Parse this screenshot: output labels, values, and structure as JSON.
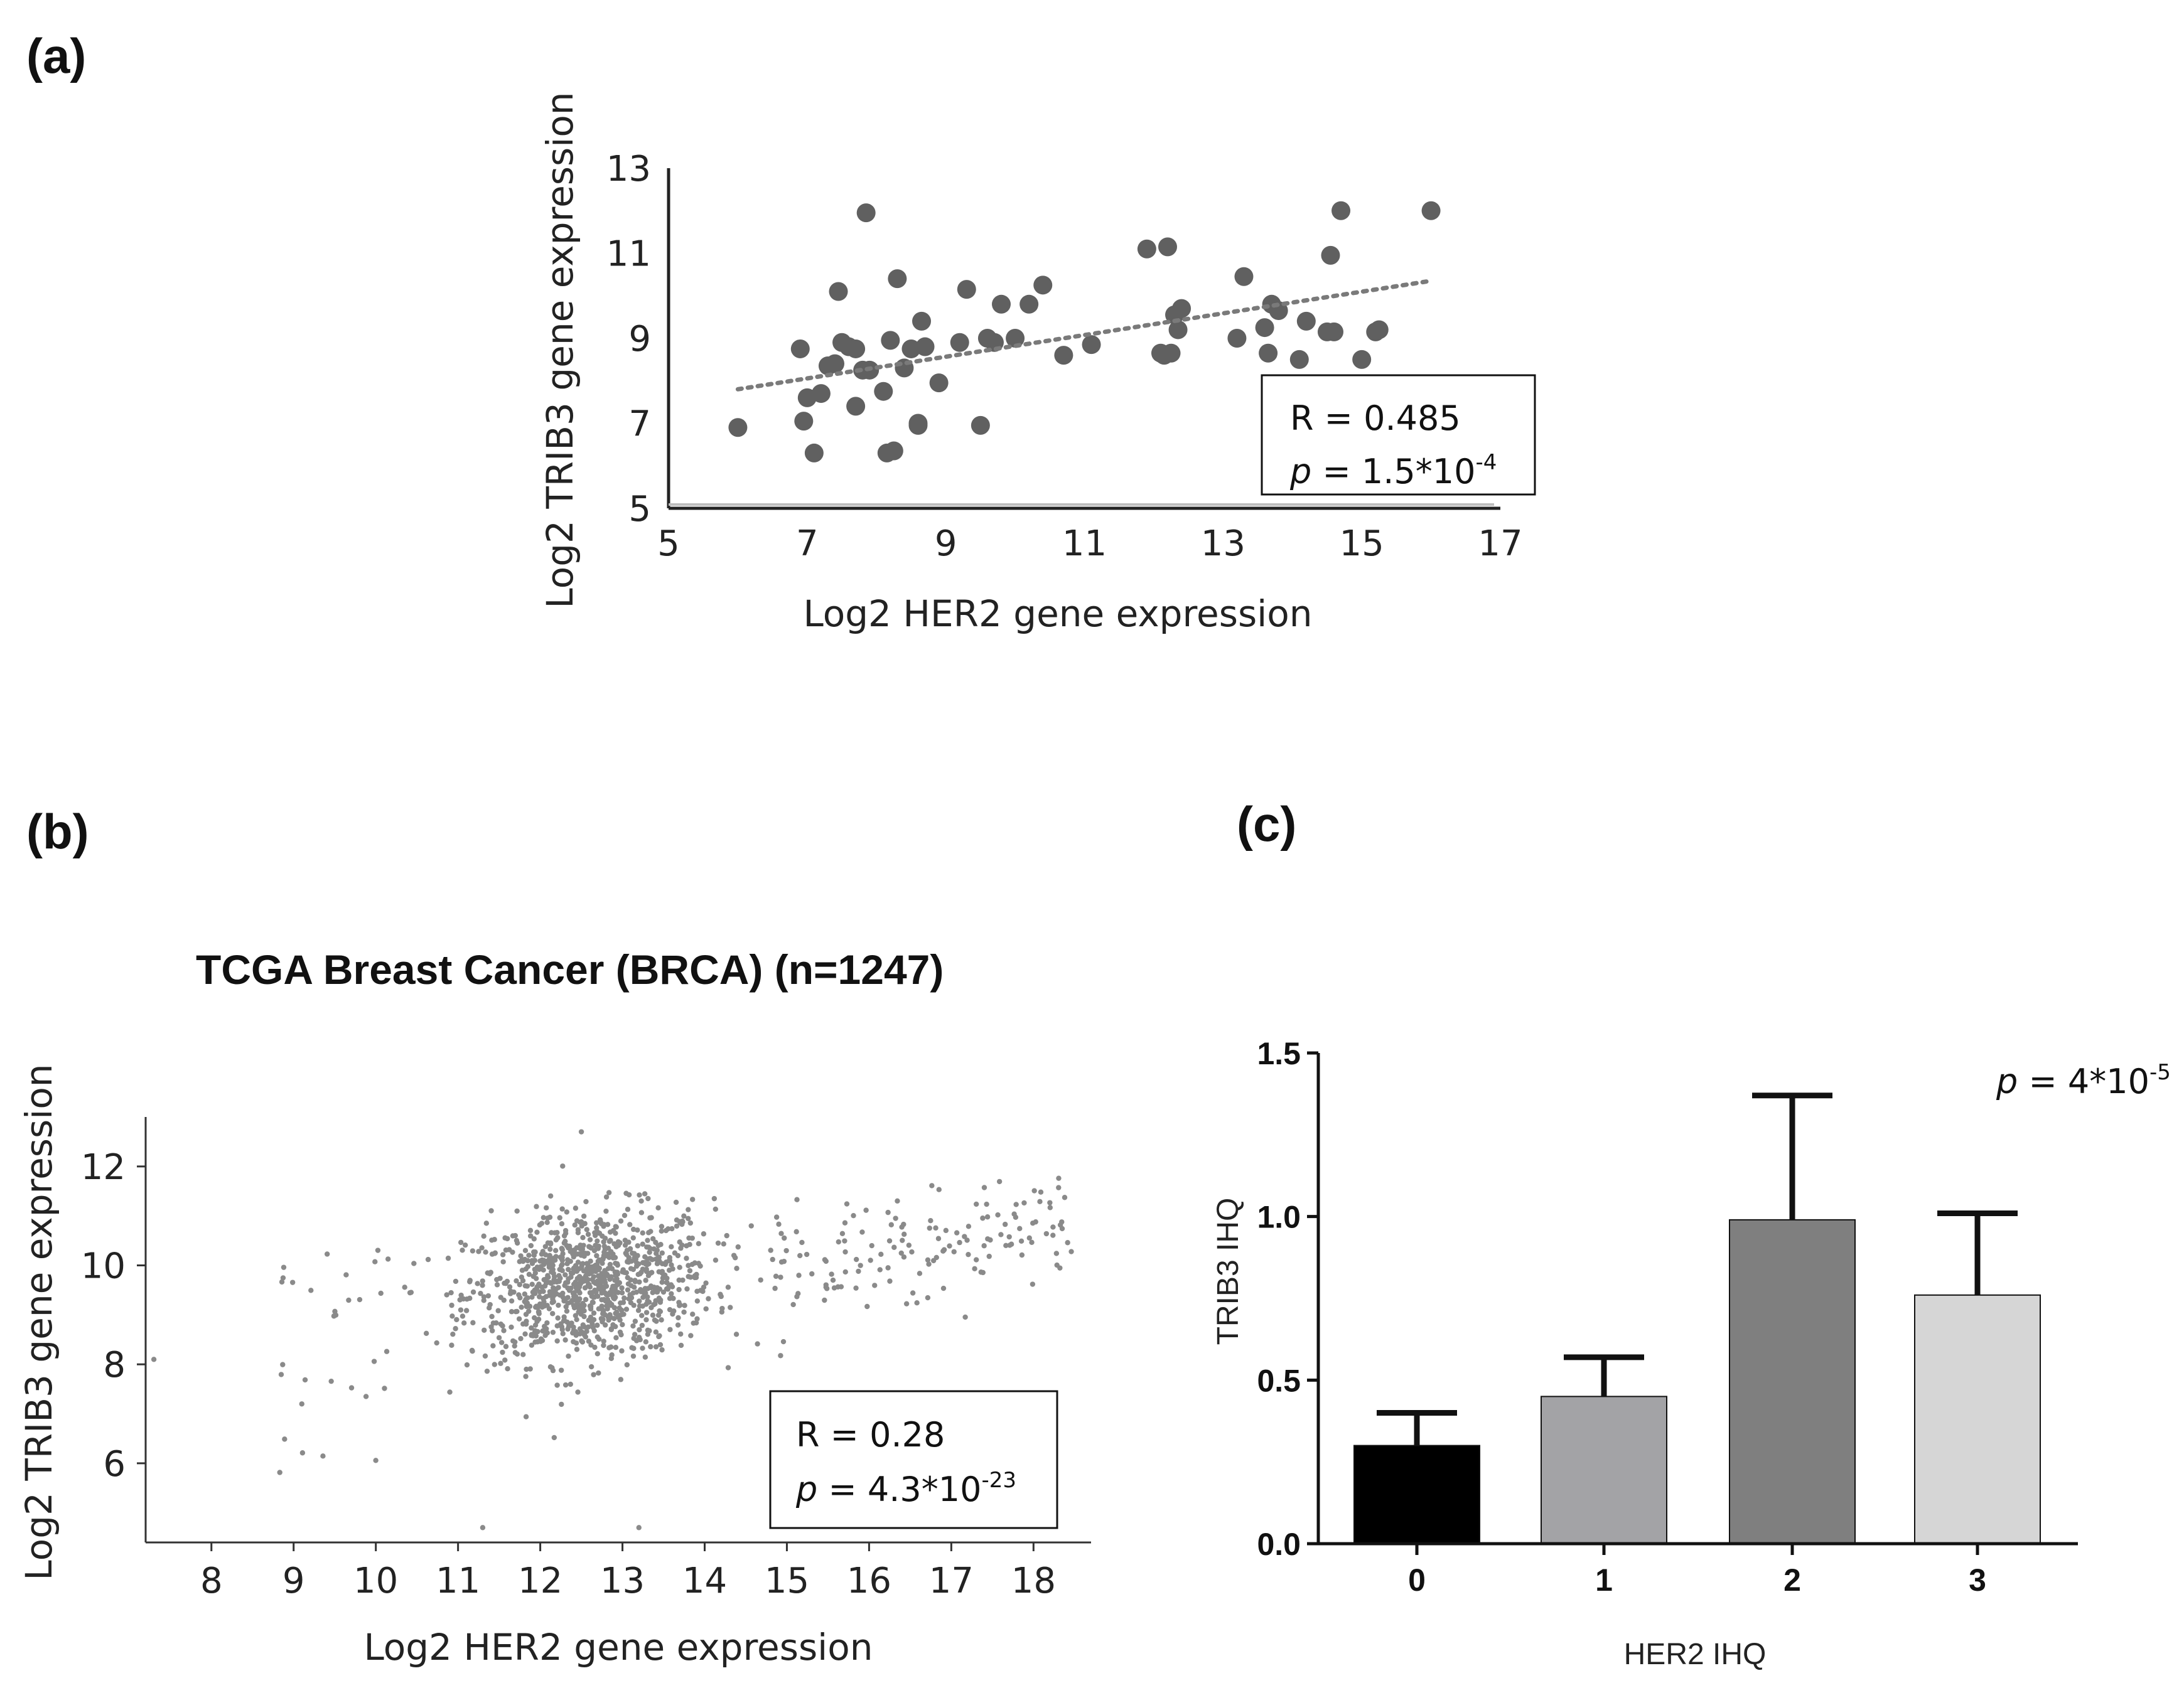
{
  "panels": {
    "a": "(a)",
    "b": "(b)",
    "c": "(c)"
  },
  "colors": {
    "scatter_a": "#606060",
    "scatter_b": "#8a8a8a",
    "trend": "#7a7a7a",
    "bar0": "#000000",
    "bar1": "#a3a3a6",
    "bar2": "#7f7f7f",
    "bar3": "#d6d6d6"
  },
  "chart_data": [
    {
      "id": "a",
      "type": "scatter",
      "title": "",
      "xlabel": "Log2 HER2 gene expression",
      "ylabel": "Log2 TRIB3 gene expression",
      "xlim": [
        5,
        17
      ],
      "ylim": [
        5,
        13
      ],
      "xticks": [
        "5",
        "7",
        "9",
        "11",
        "13",
        "15",
        "17"
      ],
      "yticks": [
        "5",
        "7",
        "9",
        "11",
        "13"
      ],
      "x": [
        6.0,
        6.9,
        6.95,
        7.0,
        7.1,
        7.2,
        7.3,
        7.4,
        7.45,
        7.5,
        7.6,
        7.7,
        7.7,
        7.8,
        7.85,
        7.9,
        8.1,
        8.15,
        8.2,
        8.25,
        8.3,
        8.4,
        8.5,
        8.6,
        8.6,
        8.65,
        8.7,
        8.9,
        9.2,
        9.3,
        9.5,
        9.6,
        9.7,
        9.8,
        10.0,
        10.2,
        10.4,
        10.7,
        11.1,
        11.9,
        12.1,
        12.15,
        12.2,
        12.25,
        12.3,
        12.35,
        12.4,
        13.2,
        13.3,
        13.6,
        13.65,
        13.7,
        13.8,
        14.1,
        14.2,
        14.5,
        14.55,
        14.6,
        14.7,
        15.0,
        15.2,
        15.25,
        16.0
      ],
      "y": [
        6.9,
        8.75,
        7.05,
        7.6,
        6.3,
        7.7,
        8.35,
        8.4,
        10.1,
        8.9,
        8.8,
        7.4,
        8.75,
        8.25,
        11.95,
        8.25,
        7.75,
        6.3,
        8.95,
        6.35,
        10.4,
        8.3,
        8.75,
        7.0,
        6.95,
        9.4,
        8.8,
        7.95,
        8.9,
        10.15,
        6.95,
        9.0,
        8.9,
        9.8,
        9.0,
        9.8,
        10.25,
        8.6,
        8.85,
        11.1,
        8.65,
        8.6,
        11.15,
        8.65,
        9.55,
        9.2,
        9.7,
        9.0,
        10.45,
        9.25,
        8.65,
        9.8,
        9.65,
        8.5,
        9.4,
        9.15,
        10.95,
        9.15,
        12.0,
        8.5,
        9.15,
        9.2,
        12.0
      ],
      "trendline": {
        "x": [
          6.0,
          16.0
        ],
        "y": [
          7.8,
          10.35
        ]
      },
      "annotation": {
        "r": "R = 0.485",
        "p_prefix": "p",
        "p_eq": " = 1.5*10",
        "p_exp": "-4"
      }
    },
    {
      "id": "b",
      "type": "scatter",
      "title": "TCGA Breast Cancer (BRCA) (n=1247)",
      "xlabel": "Log2 HER2 gene expression",
      "ylabel": "Log2 TRIB3 gene expression",
      "xlim": [
        7.2,
        18.7
      ],
      "ylim": [
        4.4,
        13.0
      ],
      "xticks": [
        "8",
        "9",
        "10",
        "11",
        "12",
        "13",
        "14",
        "15",
        "16",
        "17",
        "18"
      ],
      "yticks": [
        "6",
        "8",
        "10",
        "12"
      ],
      "n": 1247,
      "distribution": {
        "main_cluster": {
          "x_mean": 12.6,
          "x_sd": 0.75,
          "y_mean": 9.6,
          "y_sd": 0.75,
          "count": 1050
        },
        "high_her2_cluster": {
          "x_range": [
            14.8,
            18.5
          ],
          "y_mean": 10.4,
          "y_sd": 0.55,
          "count": 150
        },
        "low_outliers": {
          "x_range": [
            8.8,
            10.2
          ],
          "y_range": [
            5.8,
            10.6
          ],
          "count": 30
        },
        "notable_points": [
          {
            "x": 7.3,
            "y": 8.1
          },
          {
            "x": 11.3,
            "y": 4.7
          },
          {
            "x": 13.2,
            "y": 4.7
          },
          {
            "x": 12.5,
            "y": 12.7
          }
        ]
      },
      "annotation": {
        "r": "R = 0.28",
        "p_prefix": "p",
        "p_eq": " = 4.3*10",
        "p_exp": "-23"
      }
    },
    {
      "id": "c",
      "type": "bar",
      "title": "",
      "xlabel": "HER2 IHQ",
      "ylabel": "TRIB3 IHQ",
      "categories": [
        "0",
        "1",
        "2",
        "3"
      ],
      "values": [
        0.3,
        0.45,
        0.99,
        0.76
      ],
      "errors": [
        0.1,
        0.12,
        0.38,
        0.25
      ],
      "ylim": [
        0.0,
        1.5
      ],
      "yticks": [
        "0.0",
        "0.5",
        "1.0",
        "1.5"
      ],
      "annotation": {
        "p_prefix": "p",
        "p_eq": " = 4*10",
        "p_exp": "-5"
      }
    }
  ]
}
